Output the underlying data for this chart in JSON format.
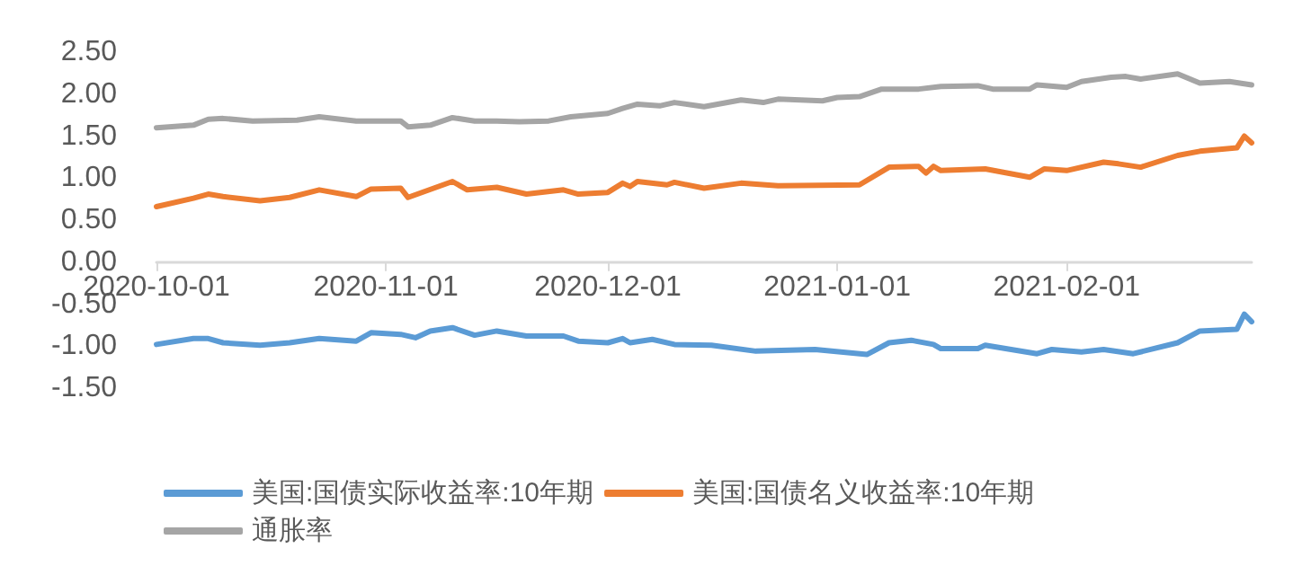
{
  "chart_data": {
    "type": "line",
    "x": [
      "2020-10-01",
      "2020-10-06",
      "2020-10-08",
      "2020-10-10",
      "2020-10-14",
      "2020-10-20",
      "2020-10-23",
      "2020-10-28",
      "2020-11-03",
      "2020-11-04",
      "2020-11-07",
      "2020-11-10",
      "2020-11-13",
      "2020-11-16",
      "2020-11-19",
      "2020-11-23",
      "2020-11-26",
      "2020-12-01",
      "2020-12-03",
      "2020-12-05",
      "2020-12-08",
      "2020-12-10",
      "2020-12-14",
      "2020-12-19",
      "2020-12-22",
      "2020-12-24",
      "2020-12-30",
      "2021-01-01",
      "2021-01-04",
      "2021-01-07",
      "2021-01-12",
      "2021-01-15",
      "2021-01-20",
      "2021-01-22",
      "2021-01-27",
      "2021-01-28",
      "2021-02-01",
      "2021-02-03",
      "2021-02-07",
      "2021-02-09",
      "2021-02-11",
      "2021-02-16",
      "2021-02-19",
      "2021-02-23",
      "2021-02-26"
    ],
    "series": [
      {
        "name": "美国:国债实际收益率:10年期",
        "color": "#5b9bd5",
        "x": [
          "2020-10-01",
          "2020-10-06",
          "2020-10-08",
          "2020-10-10",
          "2020-10-15",
          "2020-10-19",
          "2020-10-23",
          "2020-10-28",
          "2020-10-30",
          "2020-11-03",
          "2020-11-05",
          "2020-11-07",
          "2020-11-10",
          "2020-11-13",
          "2020-11-16",
          "2020-11-20",
          "2020-11-25",
          "2020-11-27",
          "2020-12-01",
          "2020-12-03",
          "2020-12-04",
          "2020-12-07",
          "2020-12-10",
          "2020-12-15",
          "2020-12-21",
          "2020-12-29",
          "2021-01-05",
          "2021-01-08",
          "2021-01-11",
          "2021-01-14",
          "2021-01-15",
          "2021-01-20",
          "2021-01-21",
          "2021-01-28",
          "2021-01-30",
          "2021-02-03",
          "2021-02-06",
          "2021-02-10",
          "2021-02-16",
          "2021-02-19",
          "2021-02-24",
          "2021-02-25",
          "2021-02-26"
        ],
        "values": [
          -0.98,
          -0.91,
          -0.91,
          -0.96,
          -0.99,
          -0.96,
          -0.91,
          -0.94,
          -0.84,
          -0.86,
          -0.9,
          -0.82,
          -0.78,
          -0.87,
          -0.82,
          -0.88,
          -0.88,
          -0.94,
          -0.96,
          -0.91,
          -0.96,
          -0.92,
          -0.98,
          -0.99,
          -1.06,
          -1.04,
          -1.1,
          -0.96,
          -0.93,
          -0.98,
          -1.03,
          -1.03,
          -0.99,
          -1.09,
          -1.04,
          -1.07,
          -1.04,
          -1.09,
          -0.96,
          -0.82,
          -0.8,
          -0.62,
          -0.71
        ]
      },
      {
        "name": "美国:国债名义收益率:10年期",
        "color": "#ed7d31",
        "x": [
          "2020-10-01",
          "2020-10-06",
          "2020-10-08",
          "2020-10-10",
          "2020-10-15",
          "2020-10-19",
          "2020-10-23",
          "2020-10-28",
          "2020-10-30",
          "2020-11-03",
          "2020-11-04",
          "2020-11-10",
          "2020-11-12",
          "2020-11-16",
          "2020-11-20",
          "2020-11-25",
          "2020-11-27",
          "2020-12-01",
          "2020-12-03",
          "2020-12-04",
          "2020-12-05",
          "2020-12-09",
          "2020-12-10",
          "2020-12-14",
          "2020-12-19",
          "2020-12-24",
          "2021-01-04",
          "2021-01-08",
          "2021-01-12",
          "2021-01-13",
          "2021-01-14",
          "2021-01-15",
          "2021-01-21",
          "2021-01-27",
          "2021-01-29",
          "2021-02-01",
          "2021-02-06",
          "2021-02-08",
          "2021-02-11",
          "2021-02-16",
          "2021-02-19",
          "2021-02-24",
          "2021-02-25",
          "2021-02-26"
        ],
        "values": [
          0.66,
          0.76,
          0.81,
          0.78,
          0.73,
          0.77,
          0.86,
          0.78,
          0.87,
          0.88,
          0.77,
          0.96,
          0.86,
          0.89,
          0.81,
          0.86,
          0.81,
          0.83,
          0.94,
          0.9,
          0.96,
          0.92,
          0.95,
          0.88,
          0.94,
          0.91,
          0.92,
          1.13,
          1.14,
          1.06,
          1.14,
          1.09,
          1.11,
          1.01,
          1.11,
          1.09,
          1.19,
          1.17,
          1.13,
          1.27,
          1.32,
          1.36,
          1.5,
          1.42
        ]
      },
      {
        "name": "通胀率",
        "color": "#a5a5a5",
        "values": [
          1.6,
          1.63,
          1.7,
          1.71,
          1.68,
          1.69,
          1.73,
          1.68,
          1.68,
          1.61,
          1.63,
          1.72,
          1.68,
          1.68,
          1.67,
          1.68,
          1.73,
          1.77,
          1.83,
          1.88,
          1.86,
          1.9,
          1.85,
          1.93,
          1.9,
          1.94,
          1.92,
          1.96,
          1.97,
          2.06,
          2.06,
          2.09,
          2.1,
          2.06,
          2.06,
          2.11,
          2.08,
          2.15,
          2.2,
          2.21,
          2.18,
          2.24,
          2.13,
          2.15,
          2.11
        ]
      }
    ],
    "xlim": [
      "2020-10-01",
      "2021-02-26"
    ],
    "xticks": [
      "2020-10-01",
      "2020-11-01",
      "2020-12-01",
      "2021-01-01",
      "2021-02-01"
    ],
    "ylim": [
      -1.5,
      2.5
    ],
    "yticks": [
      {
        "value": -1.5,
        "label": "-1.50"
      },
      {
        "value": -1,
        "label": "-1.00"
      },
      {
        "value": -0.5,
        "label": "-0.50"
      },
      {
        "value": 0,
        "label": "0.00"
      },
      {
        "value": 0.5,
        "label": "0.50"
      },
      {
        "value": 1,
        "label": "1.00"
      },
      {
        "value": 1.5,
        "label": "1.50"
      },
      {
        "value": 2,
        "label": "2.00"
      },
      {
        "value": 2.5,
        "label": "2.50"
      }
    ],
    "grid": false,
    "legend": "bottom",
    "marker": "none",
    "line_style": "solid"
  }
}
